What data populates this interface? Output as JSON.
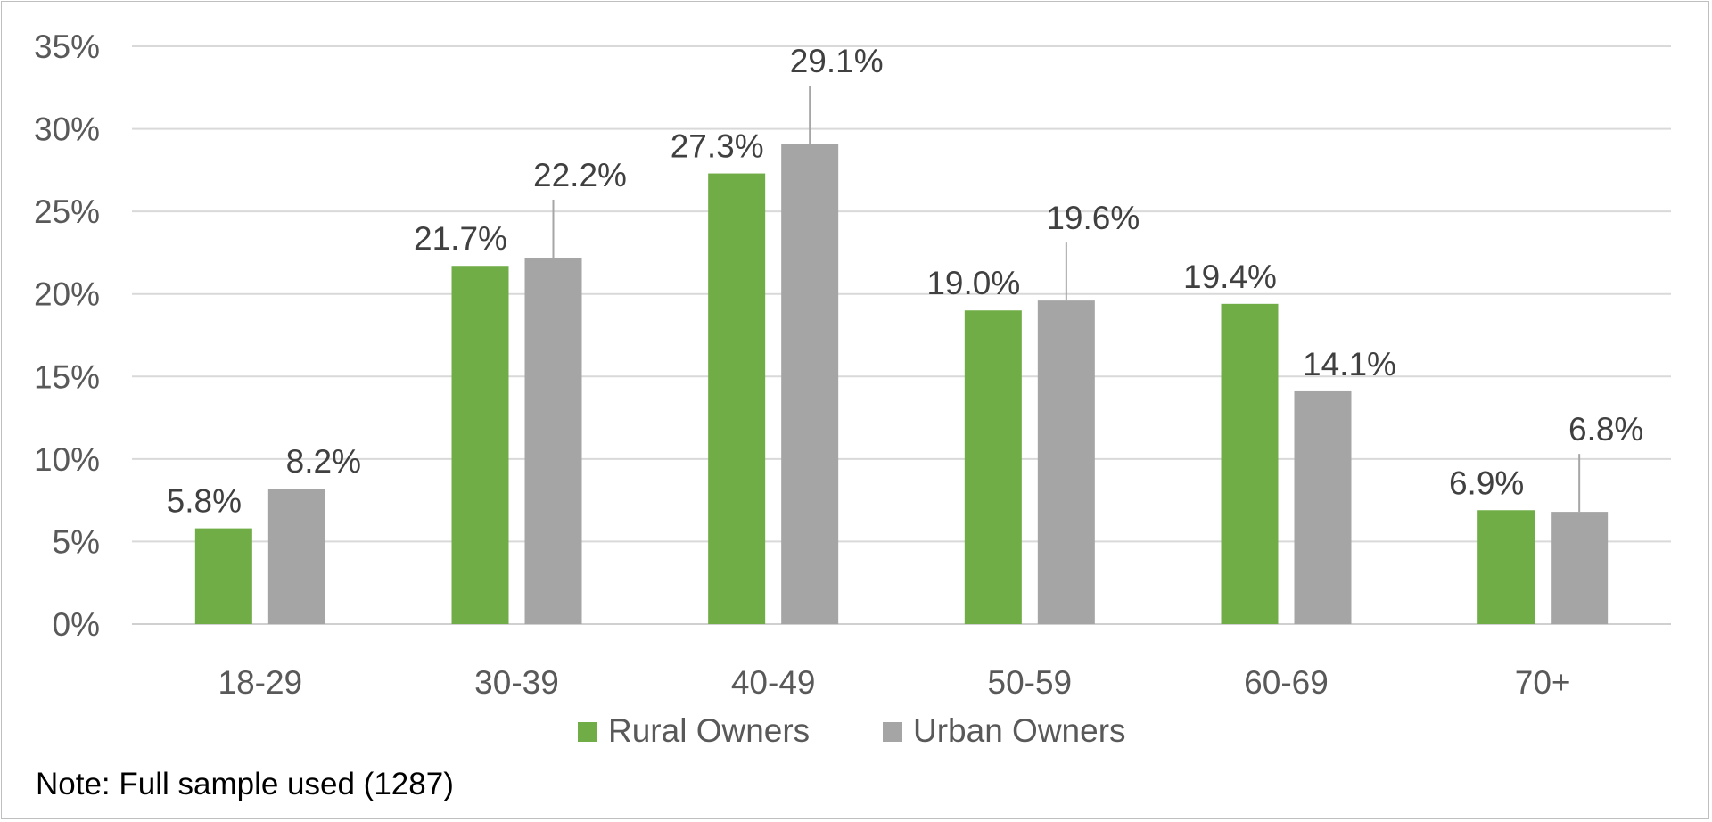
{
  "chart_data": {
    "type": "bar",
    "categories": [
      "18-29",
      "30-39",
      "40-49",
      "50-59",
      "60-69",
      "70+"
    ],
    "series": [
      {
        "name": "Rural Owners",
        "values": [
          5.8,
          21.7,
          27.3,
          19.0,
          19.4,
          6.9
        ],
        "labels": [
          "5.8%",
          "21.7%",
          "27.3%",
          "19.0%",
          "19.4%",
          "6.9%"
        ],
        "color": "#70ad47"
      },
      {
        "name": "Urban Owners",
        "values": [
          8.2,
          22.2,
          29.1,
          19.6,
          14.1,
          6.8
        ],
        "labels": [
          "8.2%",
          "22.2%",
          "29.1%",
          "19.6%",
          "14.1%",
          "6.8%"
        ],
        "color": "#a5a5a5"
      }
    ],
    "yticks": [
      "0%",
      "5%",
      "10%",
      "15%",
      "20%",
      "25%",
      "30%",
      "35%"
    ],
    "ylim": [
      0,
      35
    ],
    "grid": true,
    "legend": "bottom",
    "note": "Note: Full sample used (1287)"
  }
}
